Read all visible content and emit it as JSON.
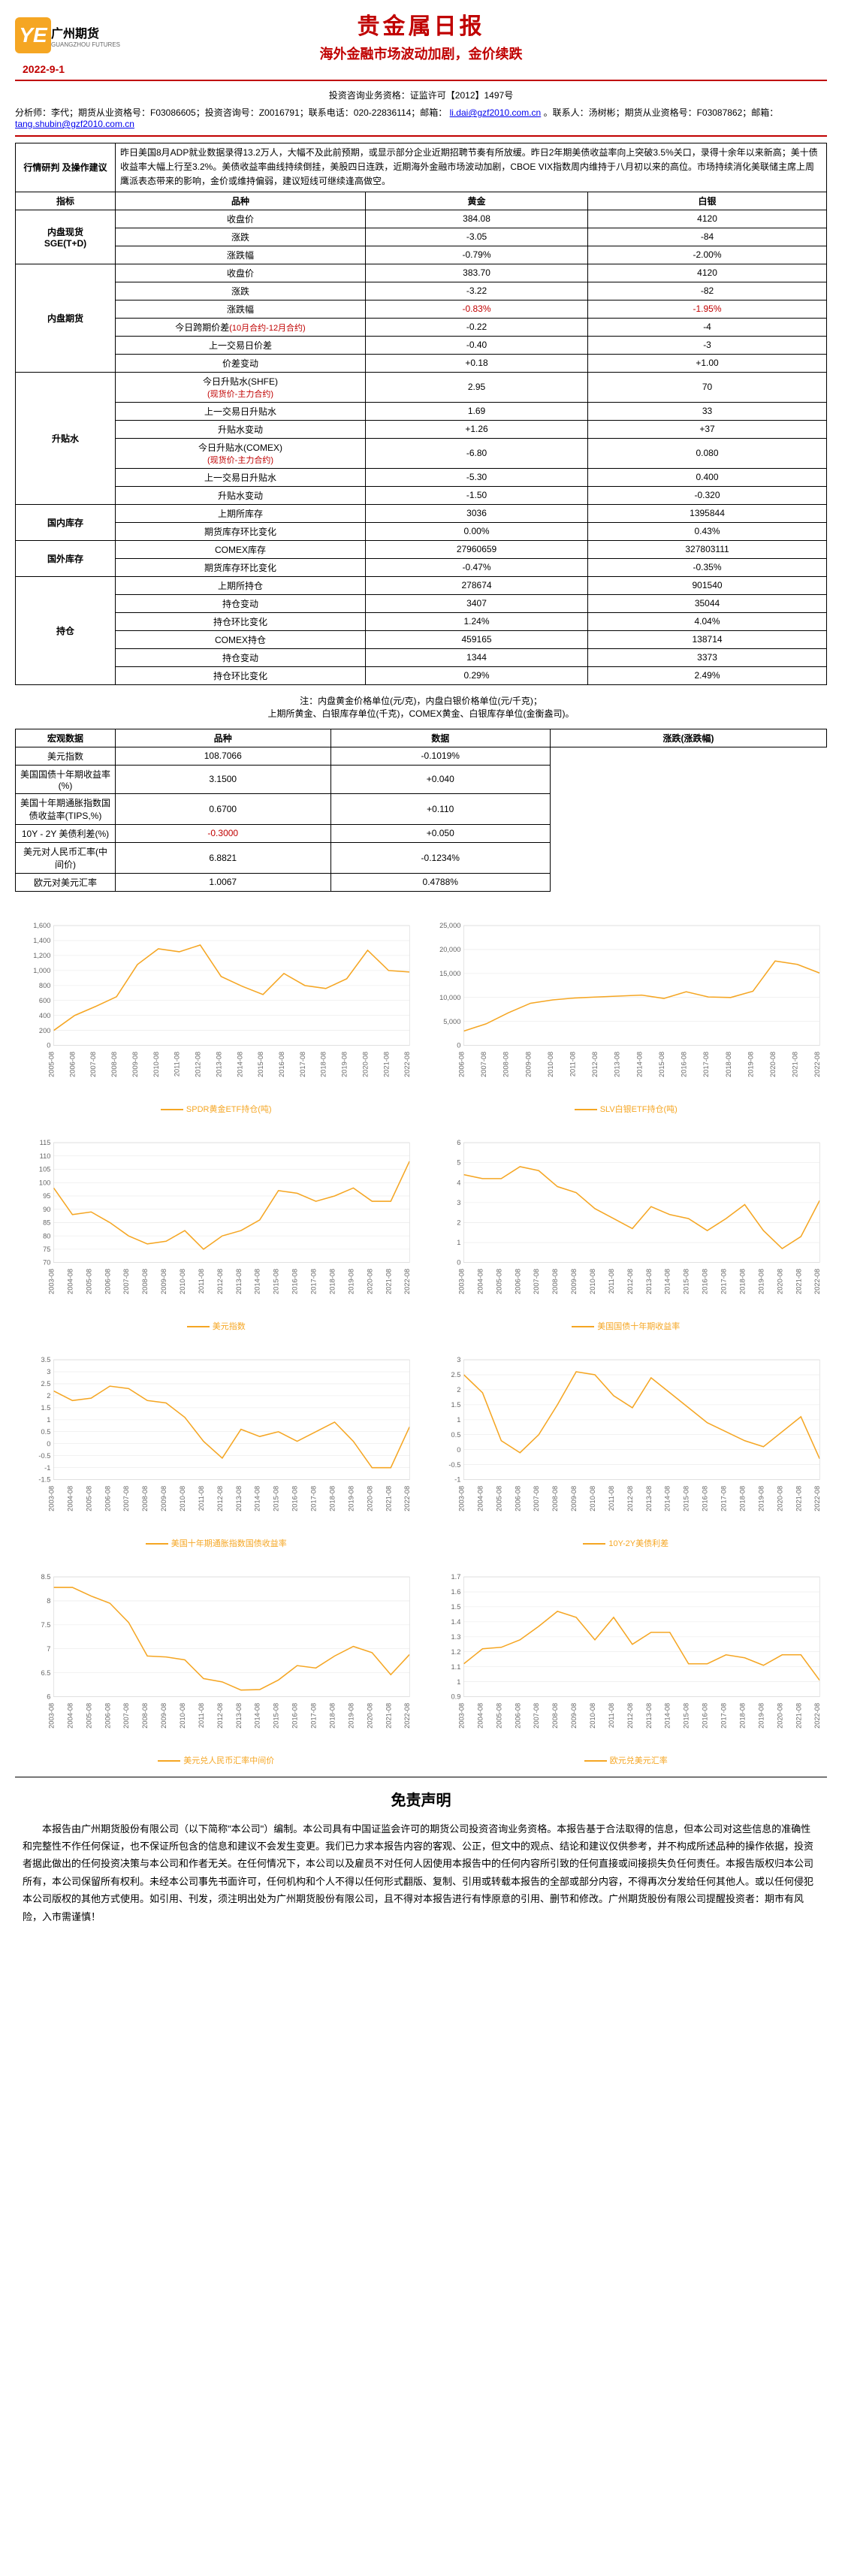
{
  "header": {
    "company": "广州期货",
    "company_en": "GUANGZHOU FUTURES",
    "title": "贵金属日报",
    "subtitle": "海外金融市场波动加剧，金价续跌",
    "date": "2022-9-1",
    "qual": "投资咨询业务资格：证监许可【2012】1497号",
    "analyst": "分析师：李代；期货从业资格号：F03086605；投资咨询号：Z0016791；联系电话：020-22836114；邮箱：",
    "analyst_mail": "li.dai@gzf2010.com.cn",
    "contact": "。联系人：汤树彬；期货从业资格号：F03087862；邮箱：",
    "contact_mail": "tang.shubin@gzf2010.com.cn"
  },
  "market_analysis": {
    "label": "行情研判\n及操作建议",
    "text": "昨日美国8月ADP就业数据录得13.2万人，大幅不及此前预期，或显示部分企业近期招聘节奏有所放缓。昨日2年期美债收益率向上突破3.5%关口，录得十余年以来新高；美十债收益率大幅上行至3.2%。美债收益率曲线持续倒挂，美股四日连跌，近期海外金融市场波动加剧，CBOE VIX指数周内维持于八月初以来的高位。市场持续消化美联储主席上周鹰派表态带来的影响，金价或维持偏弱，建议短线可继续逢高做空。"
  },
  "table_headers": {
    "indicator": "指标",
    "variety": "品种",
    "gold": "黄金",
    "silver": "白银"
  },
  "sections": [
    {
      "label": "内盘现货\nSGE(T+D)",
      "rows": [
        {
          "name": "收盘价",
          "g": "384.08",
          "s": "4120"
        },
        {
          "name": "涨跌",
          "g": "-3.05",
          "s": "-84"
        },
        {
          "name": "涨跌幅",
          "g": "-0.79%",
          "s": "-2.00%"
        }
      ]
    },
    {
      "label": "内盘期货",
      "rows": [
        {
          "name": "收盘价",
          "g": "383.70",
          "s": "4120"
        },
        {
          "name": "涨跌",
          "g": "-3.22",
          "s": "-82"
        },
        {
          "name": "涨跌幅",
          "g": "-0.83%",
          "s": "-1.95%",
          "neg": true
        },
        {
          "name": "今日跨期价差(10月合约-12月合约)",
          "g": "-0.22",
          "s": "-4",
          "red_name": true
        },
        {
          "name": "上一交易日价差",
          "g": "-0.40",
          "s": "-3"
        },
        {
          "name": "价差变动",
          "g": "+0.18",
          "s": "+1.00"
        }
      ]
    },
    {
      "label": "升贴水",
      "rows": [
        {
          "name": "今日升贴水(SHFE)\n(现货价-主力合约)",
          "g": "2.95",
          "s": "70",
          "red_sub": true
        },
        {
          "name": "上一交易日升贴水",
          "g": "1.69",
          "s": "33"
        },
        {
          "name": "升贴水变动",
          "g": "+1.26",
          "s": "+37"
        },
        {
          "name": "今日升贴水(COMEX)\n(现货价-主力合约)",
          "g": "-6.80",
          "s": "0.080",
          "red_sub": true
        },
        {
          "name": "上一交易日升贴水",
          "g": "-5.30",
          "s": "0.400"
        },
        {
          "name": "升贴水变动",
          "g": "-1.50",
          "s": "-0.320"
        }
      ]
    },
    {
      "label": "国内库存",
      "rows": [
        {
          "name": "上期所库存",
          "g": "3036",
          "s": "1395844"
        },
        {
          "name": "期货库存环比变化",
          "g": "0.00%",
          "s": "0.43%"
        }
      ]
    },
    {
      "label": "国外库存",
      "rows": [
        {
          "name": "COMEX库存",
          "g": "27960659",
          "s": "327803111"
        },
        {
          "name": "期货库存环比变化",
          "g": "-0.47%",
          "s": "-0.35%"
        }
      ]
    },
    {
      "label": "持仓",
      "rows": [
        {
          "name": "上期所持仓",
          "g": "278674",
          "s": "901540"
        },
        {
          "name": "持仓变动",
          "g": "3407",
          "s": "35044"
        },
        {
          "name": "持仓环比变化",
          "g": "1.24%",
          "s": "4.04%"
        },
        {
          "name": "COMEX持仓",
          "g": "459165",
          "s": "138714"
        },
        {
          "name": "持仓变动",
          "g": "1344",
          "s": "3373"
        },
        {
          "name": "持仓环比变化",
          "g": "0.29%",
          "s": "2.49%"
        }
      ]
    }
  ],
  "table_note": "注：内盘黄金价格单位(元/克)，内盘白银价格单位(元/千克)；\n上期所黄金、白银库存单位(千克)，COMEX黄金、白银库存单位(金衡盎司)。",
  "macro": {
    "label": "宏观数据",
    "headers": {
      "variety": "品种",
      "value": "数据",
      "change": "涨跌(涨跌幅)"
    },
    "rows": [
      {
        "name": "美元指数",
        "v": "108.7066",
        "c": "-0.1019%"
      },
      {
        "name": "美国国债十年期收益率(%)",
        "v": "3.1500",
        "c": "+0.040"
      },
      {
        "name": "美国十年期通胀指数国债收益率(TIPS,%)",
        "v": "0.6700",
        "c": "+0.110"
      },
      {
        "name": "10Y - 2Y 美债利差(%)",
        "v": "-0.3000",
        "c": "+0.050",
        "neg": true
      },
      {
        "name": "美元对人民币汇率(中间价)",
        "v": "6.8821",
        "c": "-0.1234%"
      },
      {
        "name": "欧元对美元汇率",
        "v": "1.0067",
        "c": "0.4788%"
      }
    ]
  },
  "charts": [
    {
      "legend": "SPDR黄金ETF持仓(吨)",
      "ylim": [
        0,
        1600
      ],
      "ytick": 200,
      "xticks": [
        "2005-08",
        "2006-08",
        "2007-08",
        "2008-08",
        "2009-08",
        "2010-08",
        "2011-08",
        "2012-08",
        "2013-08",
        "2014-08",
        "2015-08",
        "2016-08",
        "2017-08",
        "2018-08",
        "2019-08",
        "2020-08",
        "2021-08",
        "2022-08"
      ],
      "data": [
        200,
        400,
        520,
        650,
        1080,
        1290,
        1250,
        1340,
        920,
        790,
        680,
        960,
        800,
        760,
        890,
        1270,
        1000,
        980
      ],
      "color": "#f5a623",
      "grid": "#e6e6e6",
      "bg": "#ffffff",
      "line_width": 1.5
    },
    {
      "legend": "SLV白银ETF持仓(吨)",
      "ylim": [
        0,
        25000
      ],
      "ytick": 5000,
      "xticks": [
        "2006-08",
        "2007-08",
        "2008-08",
        "2009-08",
        "2010-08",
        "2011-08",
        "2012-08",
        "2013-08",
        "2014-08",
        "2015-08",
        "2016-08",
        "2017-08",
        "2018-08",
        "2019-08",
        "2020-08",
        "2021-08",
        "2022-08"
      ],
      "data": [
        3000,
        4500,
        6800,
        8800,
        9500,
        9900,
        10100,
        10300,
        10500,
        9800,
        11200,
        10100,
        10000,
        11300,
        17600,
        16900,
        15100
      ],
      "color": "#f5a623",
      "grid": "#e6e6e6",
      "bg": "#ffffff",
      "line_width": 1.5
    },
    {
      "legend": "美元指数",
      "ylim": [
        70,
        115
      ],
      "ytick": 5,
      "xticks": [
        "2003-08",
        "2004-08",
        "2005-08",
        "2006-08",
        "2007-08",
        "2008-08",
        "2009-08",
        "2010-08",
        "2011-08",
        "2012-08",
        "2013-08",
        "2014-08",
        "2015-08",
        "2016-08",
        "2017-08",
        "2018-08",
        "2019-08",
        "2020-08",
        "2021-08",
        "2022-08"
      ],
      "data": [
        98,
        88,
        89,
        85,
        80,
        77,
        78,
        82,
        75,
        80,
        82,
        86,
        97,
        96,
        93,
        95,
        98,
        93,
        93,
        108
      ],
      "color": "#f5a623",
      "grid": "#e6e6e6",
      "bg": "#ffffff",
      "line_width": 1.5
    },
    {
      "legend": "美国国债十年期收益率",
      "ylim": [
        0,
        6
      ],
      "ytick": 1,
      "xticks": [
        "2003-08",
        "2004-08",
        "2005-08",
        "2006-08",
        "2007-08",
        "2008-08",
        "2009-08",
        "2010-08",
        "2011-08",
        "2012-08",
        "2013-08",
        "2014-08",
        "2015-08",
        "2016-08",
        "2017-08",
        "2018-08",
        "2019-08",
        "2020-08",
        "2021-08",
        "2022-08"
      ],
      "data": [
        4.4,
        4.2,
        4.2,
        4.8,
        4.6,
        3.8,
        3.5,
        2.7,
        2.2,
        1.7,
        2.8,
        2.4,
        2.2,
        1.6,
        2.2,
        2.9,
        1.6,
        0.7,
        1.3,
        3.1
      ],
      "color": "#f5a623",
      "grid": "#e6e6e6",
      "bg": "#ffffff",
      "line_width": 1.5
    },
    {
      "legend": "美国十年期通胀指数国债收益率",
      "ylim": [
        -1.5,
        3.5
      ],
      "ytick": 0.5,
      "xticks": [
        "2003-08",
        "2004-08",
        "2005-08",
        "2006-08",
        "2007-08",
        "2008-08",
        "2009-08",
        "2010-08",
        "2011-08",
        "2012-08",
        "2013-08",
        "2014-08",
        "2015-08",
        "2016-08",
        "2017-08",
        "2018-08",
        "2019-08",
        "2020-08",
        "2021-08",
        "2022-08"
      ],
      "data": [
        2.2,
        1.8,
        1.9,
        2.4,
        2.3,
        1.8,
        1.7,
        1.1,
        0.1,
        -0.6,
        0.6,
        0.3,
        0.5,
        0.1,
        0.5,
        0.9,
        0.1,
        -1.0,
        -1.0,
        0.7
      ],
      "color": "#f5a623",
      "grid": "#e6e6e6",
      "bg": "#ffffff",
      "line_width": 1.5
    },
    {
      "legend": "10Y-2Y美债利差",
      "ylim": [
        -1.0,
        3.0
      ],
      "ytick": 0.5,
      "xticks": [
        "2003-08",
        "2004-08",
        "2005-08",
        "2006-08",
        "2007-08",
        "2008-08",
        "2009-08",
        "2010-08",
        "2011-08",
        "2012-08",
        "2013-08",
        "2014-08",
        "2015-08",
        "2016-08",
        "2017-08",
        "2018-08",
        "2019-08",
        "2020-08",
        "2021-08",
        "2022-08"
      ],
      "data": [
        2.5,
        1.9,
        0.3,
        -0.1,
        0.5,
        1.5,
        2.6,
        2.5,
        1.8,
        1.4,
        2.4,
        1.9,
        1.4,
        0.9,
        0.6,
        0.3,
        0.1,
        0.6,
        1.1,
        -0.3
      ],
      "color": "#f5a623",
      "grid": "#e6e6e6",
      "bg": "#ffffff",
      "line_width": 1.5
    },
    {
      "legend": "美元兑人民币汇率中间价",
      "ylim": [
        6.0,
        8.5
      ],
      "ytick": 0.5,
      "xticks": [
        "2003-08",
        "2004-08",
        "2005-08",
        "2006-08",
        "2007-08",
        "2008-08",
        "2009-08",
        "2010-08",
        "2011-08",
        "2012-08",
        "2013-08",
        "2014-08",
        "2015-08",
        "2016-08",
        "2017-08",
        "2018-08",
        "2019-08",
        "2020-08",
        "2021-08",
        "2022-08"
      ],
      "data": [
        8.28,
        8.28,
        8.1,
        7.95,
        7.55,
        6.85,
        6.83,
        6.77,
        6.38,
        6.31,
        6.14,
        6.15,
        6.35,
        6.65,
        6.6,
        6.85,
        7.05,
        6.92,
        6.46,
        6.88
      ],
      "color": "#f5a623",
      "grid": "#e6e6e6",
      "bg": "#ffffff",
      "line_width": 1.5
    },
    {
      "legend": "欧元兑美元汇率",
      "ylim": [
        0.9,
        1.7
      ],
      "ytick": 0.1,
      "xticks": [
        "2003-08",
        "2004-08",
        "2005-08",
        "2006-08",
        "2007-08",
        "2008-08",
        "2009-08",
        "2010-08",
        "2011-08",
        "2012-08",
        "2013-08",
        "2014-08",
        "2015-08",
        "2016-08",
        "2017-08",
        "2018-08",
        "2019-08",
        "2020-08",
        "2021-08",
        "2022-08"
      ],
      "data": [
        1.12,
        1.22,
        1.23,
        1.28,
        1.37,
        1.47,
        1.43,
        1.28,
        1.43,
        1.25,
        1.33,
        1.33,
        1.12,
        1.12,
        1.18,
        1.16,
        1.11,
        1.18,
        1.18,
        1.01
      ],
      "color": "#f5a623",
      "grid": "#e6e6e6",
      "bg": "#ffffff",
      "line_width": 1.5
    }
  ],
  "disclaimer": {
    "title": "免责声明",
    "text": "本报告由广州期货股份有限公司（以下简称\"本公司\"）编制。本公司具有中国证监会许可的期货公司投资咨询业务资格。本报告基于合法取得的信息，但本公司对这些信息的准确性和完整性不作任何保证，也不保证所包含的信息和建议不会发生变更。我们已力求本报告内容的客观、公正，但文中的观点、结论和建议仅供参考，并不构成所述品种的操作依据，投资者据此做出的任何投资决策与本公司和作者无关。在任何情况下，本公司以及雇员不对任何人因使用本报告中的任何内容所引致的任何直接或间接损失负任何责任。本报告版权归本公司所有，本公司保留所有权利。未经本公司事先书面许可，任何机构和个人不得以任何形式翻版、复制、引用或转载本报告的全部或部分内容，不得再次分发给任何其他人。或以任何侵犯本公司版权的其他方式使用。如引用、刊发，须注明出处为广州期货股份有限公司，且不得对本报告进行有悖原意的引用、删节和修改。广州期货股份有限公司提醒投资者：期市有风险，入市需谨慎！"
  }
}
